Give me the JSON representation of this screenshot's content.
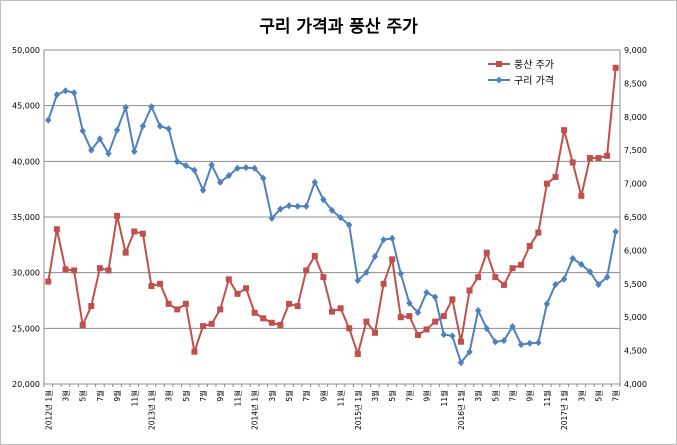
{
  "chart_data": {
    "type": "line",
    "title": "구리 가격과 풍산 주가",
    "xlabel": "",
    "y_left": {
      "min": 20000,
      "max": 50000,
      "step": 5000,
      "ticks": [
        "20,000",
        "25,000",
        "30,000",
        "35,000",
        "40,000",
        "45,000",
        "50,000"
      ]
    },
    "y_right": {
      "min": 4000,
      "max": 9000,
      "step": 500,
      "ticks": [
        "4,000",
        "4,500",
        "5,000",
        "5,500",
        "6,000",
        "6,500",
        "7,000",
        "7,500",
        "8,000",
        "8,500",
        "9,000"
      ]
    },
    "x_labels": [
      "2012년 1월",
      "3월",
      "5월",
      "7월",
      "9월",
      "11월",
      "2013년 1월",
      "3월",
      "5월",
      "7월",
      "9월",
      "11월",
      "2014년 1월",
      "3월",
      "5월",
      "7월",
      "9월",
      "11월",
      "2015년 1월",
      "3월",
      "5월",
      "7월",
      "9월",
      "11월",
      "2016년 1월",
      "3월",
      "5월",
      "7월",
      "9월",
      "11월",
      "2017년 1월",
      "3월",
      "5월",
      "7월"
    ],
    "grid": true,
    "legend_position": "top-right",
    "series": [
      {
        "name": "풍산 주가",
        "axis": "left",
        "color": "#c0504d",
        "marker": "square",
        "values": [
          29200,
          33900,
          30300,
          30200,
          25300,
          27000,
          30400,
          30200,
          35100,
          31800,
          33700,
          33500,
          28800,
          29000,
          27200,
          26700,
          27200,
          22900,
          25200,
          25400,
          26700,
          29400,
          28100,
          28600,
          26400,
          25900,
          25500,
          25300,
          27200,
          27000,
          30200,
          31500,
          29600,
          26500,
          26800,
          25000,
          22700,
          25600,
          24600,
          29000,
          31200,
          26000,
          26100,
          24400,
          24900,
          25600,
          26100,
          27600,
          23800,
          28400,
          29600,
          31800,
          29600,
          28900,
          30400,
          30700,
          32400,
          33600,
          38000,
          38600,
          42800,
          39900,
          36900,
          40300,
          40300,
          40500,
          48400
        ]
      },
      {
        "name": "구리 가격",
        "axis": "right",
        "color": "#4f81bd",
        "marker": "diamond",
        "values": [
          7950,
          8330,
          8390,
          8360,
          7790,
          7500,
          7670,
          7450,
          7800,
          8140,
          7480,
          7860,
          8150,
          7860,
          7820,
          7330,
          7270,
          7200,
          6900,
          7280,
          7020,
          7120,
          7230,
          7240,
          7230,
          7080,
          6480,
          6620,
          6670,
          6660,
          6660,
          7020,
          6760,
          6600,
          6490,
          6380,
          5550,
          5670,
          5910,
          6160,
          6180,
          5650,
          5210,
          5070,
          5370,
          5300,
          4740,
          4720,
          4320,
          4480,
          5100,
          4830,
          4630,
          4650,
          4860,
          4590,
          4610,
          4620,
          5200,
          5490,
          5570,
          5880,
          5790,
          5680,
          5490,
          5600,
          6280
        ]
      }
    ]
  }
}
